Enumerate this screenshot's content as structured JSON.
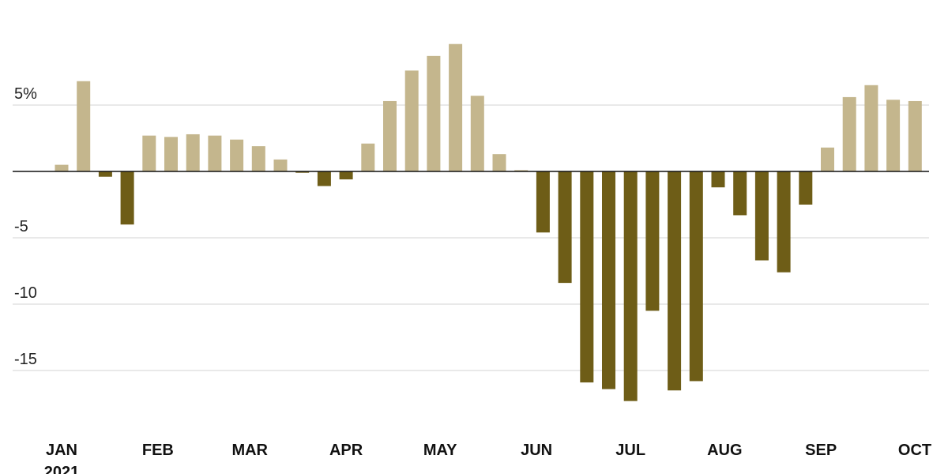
{
  "chart_data": {
    "type": "bar",
    "title": "",
    "xlabel": "",
    "ylabel": "",
    "ylim": [
      -20,
      10
    ],
    "grid": true,
    "colors": {
      "positive": "#c4b68d",
      "negative": "#6e5d17",
      "grid": "#d3d3d3",
      "zero_line": "#111111"
    },
    "y_ticks": [
      {
        "value": 5,
        "label": "5%"
      },
      {
        "value": -5,
        "label": "-5"
      },
      {
        "value": -10,
        "label": "-10"
      },
      {
        "value": -15,
        "label": "-15"
      }
    ],
    "x_ticks": [
      {
        "label": "JAN",
        "sublabel": "2021",
        "at": 0
      },
      {
        "label": "FEB",
        "at": 4.4
      },
      {
        "label": "MAR",
        "at": 8.6
      },
      {
        "label": "APR",
        "at": 13.0
      },
      {
        "label": "MAY",
        "at": 17.3
      },
      {
        "label": "JUN",
        "at": 21.7
      },
      {
        "label": "JUL",
        "at": 26.0
      },
      {
        "label": "AUG",
        "at": 30.3
      },
      {
        "label": "SEP",
        "at": 34.7
      },
      {
        "label": "OCT",
        "at": 39.0
      }
    ],
    "values": [
      0.5,
      6.8,
      -0.4,
      -4.0,
      2.7,
      2.6,
      2.8,
      2.7,
      2.4,
      1.9,
      0.9,
      -0.1,
      -1.1,
      -0.6,
      2.1,
      5.3,
      7.6,
      8.7,
      9.6,
      5.7,
      1.3,
      0.1,
      -4.6,
      -8.4,
      -15.9,
      -16.4,
      -17.3,
      -10.5,
      -16.5,
      -15.8,
      -1.2,
      -3.3,
      -6.7,
      -7.6,
      -2.5,
      1.8,
      5.6,
      6.5,
      5.4,
      5.3
    ]
  }
}
